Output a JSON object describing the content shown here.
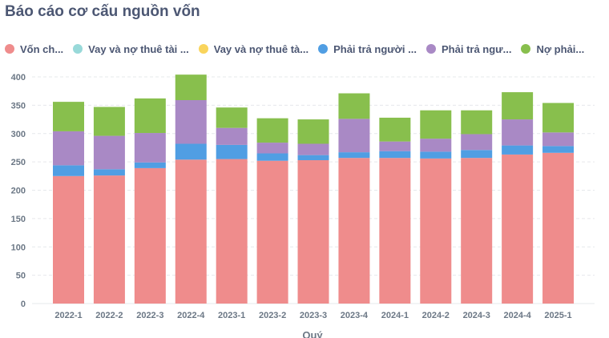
{
  "title": "Báo cáo cơ cấu nguồn vốn",
  "chart_data": {
    "type": "bar",
    "stacked": true,
    "title": "Báo cáo cơ cấu nguồn vốn",
    "xlabel": "Quý",
    "ylabel": "",
    "ylim": [
      0,
      400
    ],
    "yticks": [
      0,
      50,
      100,
      150,
      200,
      250,
      300,
      350,
      400
    ],
    "grid": true,
    "legend_position": "top",
    "categories": [
      "2022-1",
      "2022-2",
      "2022-3",
      "2022-4",
      "2023-1",
      "2023-2",
      "2023-3",
      "2023-4",
      "2024-1",
      "2024-2",
      "2024-3",
      "2024-4",
      "2025-1"
    ],
    "series": [
      {
        "name": "Vốn ch...",
        "color": "#ef8c8c",
        "values": [
          225,
          226,
          239,
          254,
          255,
          252,
          253,
          257,
          257,
          256,
          257,
          263,
          266
        ]
      },
      {
        "name": "Vay và nợ thuê tài ...",
        "color": "#98d9d9",
        "values": [
          0,
          0,
          0,
          0,
          0,
          0,
          0,
          0,
          0,
          0,
          0,
          0,
          0
        ]
      },
      {
        "name": "Vay và nợ thuê tà...",
        "color": "#f9d45c",
        "values": [
          0,
          0,
          0,
          0,
          0,
          0,
          0,
          0,
          0,
          0,
          0,
          0,
          0
        ]
      },
      {
        "name": "Phải trả người ...",
        "color": "#509ee3",
        "values": [
          19,
          11,
          10,
          28,
          25,
          13,
          9,
          10,
          12,
          12,
          14,
          16,
          12
        ]
      },
      {
        "name": "Phải trả ngư...",
        "color": "#a989c5",
        "values": [
          60,
          59,
          52,
          77,
          30,
          19,
          20,
          59,
          17,
          23,
          28,
          46,
          24
        ]
      },
      {
        "name": "Nợ phải...",
        "color": "#88bf4d",
        "values": [
          52,
          51,
          61,
          45,
          36,
          43,
          43,
          45,
          42,
          50,
          42,
          48,
          52
        ]
      }
    ]
  }
}
